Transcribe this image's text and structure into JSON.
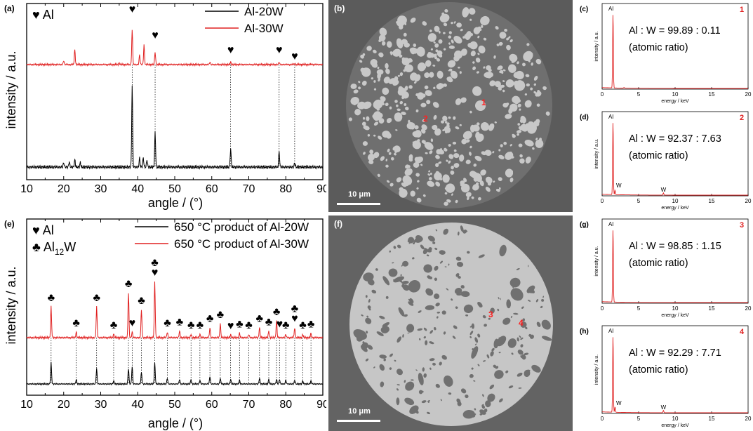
{
  "colors": {
    "black": "#000000",
    "red": "#e02020",
    "sem_dark": "#6f6f6f",
    "sem_light": "#c9c9c9",
    "sem_bg": "#5e5e5e",
    "grid_dots": "#000000"
  },
  "icons": {
    "heart": "♥",
    "club": "♣"
  },
  "xrd": {
    "xlabel": "angle / (°)",
    "ylabel": "intensity / a.u.",
    "xticks": [
      "10",
      "20",
      "30",
      "40",
      "50",
      "60",
      "70",
      "80",
      "90"
    ],
    "a": {
      "label": "(a)",
      "phase_legend": [
        {
          "icon": "♥",
          "text": "Al"
        }
      ],
      "legend": [
        {
          "name": "Al-20W",
          "color": "#000000"
        },
        {
          "name": "Al-30W",
          "color": "#e02020"
        }
      ]
    },
    "e": {
      "label": "(e)",
      "phase_legend": [
        {
          "icon": "♥",
          "text": "Al"
        },
        {
          "icon": "♣",
          "text": "Al",
          "sub": "12",
          "text2": "W"
        }
      ],
      "legend": [
        {
          "name": "650 °C product of Al-20W",
          "color": "#000000"
        },
        {
          "name": "650 °C product of Al-30W",
          "color": "#e02020"
        }
      ]
    }
  },
  "sem": {
    "b": {
      "label": "(b)",
      "scale": "10 μm",
      "points": [
        "1",
        "2"
      ]
    },
    "f": {
      "label": "(f)",
      "scale": "10 μm",
      "points": [
        "3",
        "4"
      ]
    }
  },
  "eds": {
    "xlabel": "energy / keV",
    "ylabel": "intensity / a.u.",
    "xticks": [
      "0",
      "5",
      "10",
      "15",
      "20"
    ],
    "panels": [
      {
        "label": "(c)",
        "point": "1",
        "ratio": "Al : W = 99.89 : 0.11",
        "note": "(atomic ratio)",
        "peaks": [
          "Al"
        ]
      },
      {
        "label": "(d)",
        "point": "2",
        "ratio": "Al : W = 92.37 : 7.63",
        "note": "(atomic ratio)",
        "peaks": [
          "Al",
          "W",
          "W"
        ]
      },
      {
        "label": "(g)",
        "point": "3",
        "ratio": "Al : W = 98.85 : 1.15",
        "note": "(atomic ratio)",
        "peaks": [
          "Al"
        ]
      },
      {
        "label": "(h)",
        "point": "4",
        "ratio": "Al : W = 92.29 : 7.71",
        "note": "(atomic ratio)",
        "peaks": [
          "Al",
          "W",
          "W"
        ]
      }
    ]
  },
  "chart_data": [
    {
      "type": "line",
      "panel": "(a)",
      "xlabel": "angle / (°)",
      "ylabel": "intensity / a.u.",
      "xlim": [
        10,
        90
      ],
      "series": [
        {
          "name": "Al-20W",
          "color": "#000000",
          "peaks": [
            [
              20,
              0.05
            ],
            [
              21.5,
              0.06
            ],
            [
              23,
              0.08
            ],
            [
              24.5,
              0.05
            ],
            [
              38.5,
              0.9
            ],
            [
              40.5,
              0.1
            ],
            [
              41.5,
              0.1
            ],
            [
              42.5,
              0.08
            ],
            [
              44.7,
              0.38
            ],
            [
              65.1,
              0.2
            ],
            [
              78.2,
              0.17
            ],
            [
              82.4,
              0.05
            ]
          ]
        },
        {
          "name": "Al-30W",
          "color": "#e02020",
          "peaks": [
            [
              20,
              0.08
            ],
            [
              23,
              0.3
            ],
            [
              35,
              0.03
            ],
            [
              38.5,
              0.7
            ],
            [
              40.5,
              0.2
            ],
            [
              41.7,
              0.4
            ],
            [
              44.7,
              0.25
            ],
            [
              59.5,
              0.05
            ],
            [
              65.1,
              0.05
            ],
            [
              78.2,
              0.05
            ],
            [
              82.4,
              0.02
            ],
            [
              87,
              0.01
            ]
          ]
        }
      ],
      "markers": [
        {
          "symbol": "♥",
          "x": 38.5
        },
        {
          "symbol": "♥",
          "x": 44.7
        },
        {
          "symbol": "♥",
          "x": 65.1
        },
        {
          "symbol": "♥",
          "x": 78.2
        },
        {
          "symbol": "♥",
          "x": 82.4
        }
      ]
    },
    {
      "type": "line",
      "panel": "(e)",
      "xlabel": "angle / (°)",
      "ylabel": "intensity / a.u.",
      "xlim": [
        10,
        90
      ],
      "series": [
        {
          "name": "650 °C product of Al-20W",
          "color": "#000000",
          "peaks": [
            [
              16.6,
              0.55
            ],
            [
              23.4,
              0.12
            ],
            [
              28.9,
              0.4
            ],
            [
              33.5,
              0.08
            ],
            [
              37.5,
              0.4
            ],
            [
              38.5,
              0.45
            ],
            [
              41,
              0.3
            ],
            [
              44.6,
              0.55
            ],
            [
              48,
              0.15
            ],
            [
              51.3,
              0.12
            ],
            [
              54.4,
              0.12
            ],
            [
              56.8,
              0.1
            ],
            [
              59.5,
              0.2
            ],
            [
              62.3,
              0.15
            ],
            [
              65.1,
              0.12
            ],
            [
              67.5,
              0.1
            ],
            [
              72.9,
              0.15
            ],
            [
              75.4,
              0.12
            ],
            [
              77.5,
              0.12
            ],
            [
              78.3,
              0.12
            ],
            [
              80,
              0.1
            ],
            [
              82.4,
              0.1
            ],
            [
              84.6,
              0.08
            ],
            [
              86.8,
              0.08
            ]
          ]
        },
        {
          "name": "650 °C product of Al-30W",
          "color": "#e02020",
          "peaks": [
            [
              16.6,
              0.55
            ],
            [
              23.4,
              0.1
            ],
            [
              28.9,
              0.55
            ],
            [
              33.5,
              0.06
            ],
            [
              37.5,
              0.8
            ],
            [
              38.5,
              0.1
            ],
            [
              41,
              0.5
            ],
            [
              44.6,
              1.0
            ],
            [
              48,
              0.1
            ],
            [
              51.3,
              0.12
            ],
            [
              54.4,
              0.06
            ],
            [
              56.8,
              0.06
            ],
            [
              59.5,
              0.18
            ],
            [
              62.3,
              0.25
            ],
            [
              65.1,
              0.05
            ],
            [
              67.5,
              0.08
            ],
            [
              70,
              0.06
            ],
            [
              72.9,
              0.18
            ],
            [
              75.4,
              0.12
            ],
            [
              77.5,
              0.3
            ],
            [
              80,
              0.06
            ],
            [
              82.4,
              0.18
            ],
            [
              84.6,
              0.06
            ],
            [
              86.8,
              0.08
            ]
          ]
        }
      ],
      "markers": [
        {
          "symbol": "♣",
          "x": 16.6
        },
        {
          "symbol": "♣",
          "x": 23.4
        },
        {
          "symbol": "♣",
          "x": 28.9
        },
        {
          "symbol": "♣",
          "x": 33.5
        },
        {
          "symbol": "♣",
          "x": 37.5
        },
        {
          "symbol": "♥",
          "x": 38.5
        },
        {
          "symbol": "♣",
          "x": 41
        },
        {
          "symbol": "♣♥",
          "x": 44.6
        },
        {
          "symbol": "♣",
          "x": 48
        },
        {
          "symbol": "♣",
          "x": 51.3
        },
        {
          "symbol": "♣",
          "x": 54.4
        },
        {
          "symbol": "♣",
          "x": 56.8
        },
        {
          "symbol": "♣",
          "x": 59.5
        },
        {
          "symbol": "♣",
          "x": 62.3
        },
        {
          "symbol": "♥",
          "x": 65.1
        },
        {
          "symbol": "♣",
          "x": 67.5
        },
        {
          "symbol": "♣",
          "x": 70
        },
        {
          "symbol": "♣",
          "x": 72.9
        },
        {
          "symbol": "♣",
          "x": 75.4
        },
        {
          "symbol": "♣",
          "x": 77.5
        },
        {
          "symbol": "♥",
          "x": 78.3
        },
        {
          "symbol": "♣",
          "x": 80
        },
        {
          "symbol": "♣♥",
          "x": 82.4
        },
        {
          "symbol": "♣",
          "x": 84.6
        },
        {
          "symbol": "♣",
          "x": 86.8
        }
      ]
    },
    {
      "type": "line",
      "panel": "(c)",
      "xlabel": "energy / keV",
      "ylabel": "intensity / a.u.",
      "xlim": [
        0,
        20
      ],
      "series": [
        {
          "name": "point 1",
          "color": "#e02020",
          "peaks": [
            [
              1.49,
              1.0
            ],
            [
              3.0,
              0.01
            ]
          ]
        }
      ]
    },
    {
      "type": "line",
      "panel": "(d)",
      "xlabel": "energy / keV",
      "ylabel": "intensity / a.u.",
      "xlim": [
        0,
        20
      ],
      "series": [
        {
          "name": "point 2",
          "color": "#e02020",
          "peaks": [
            [
              1.49,
              1.0
            ],
            [
              1.77,
              0.06
            ],
            [
              8.4,
              0.03
            ]
          ]
        }
      ]
    },
    {
      "type": "line",
      "panel": "(g)",
      "xlabel": "energy / keV",
      "ylabel": "intensity / a.u.",
      "xlim": [
        0,
        20
      ],
      "series": [
        {
          "name": "point 3",
          "color": "#e02020",
          "peaks": [
            [
              1.49,
              1.0
            ]
          ]
        }
      ]
    },
    {
      "type": "line",
      "panel": "(h)",
      "xlabel": "energy / keV",
      "ylabel": "intensity / a.u.",
      "xlim": [
        0,
        20
      ],
      "series": [
        {
          "name": "point 4",
          "color": "#e02020",
          "peaks": [
            [
              1.49,
              1.0
            ],
            [
              1.77,
              0.07
            ],
            [
              8.4,
              0.03
            ]
          ]
        }
      ]
    }
  ]
}
